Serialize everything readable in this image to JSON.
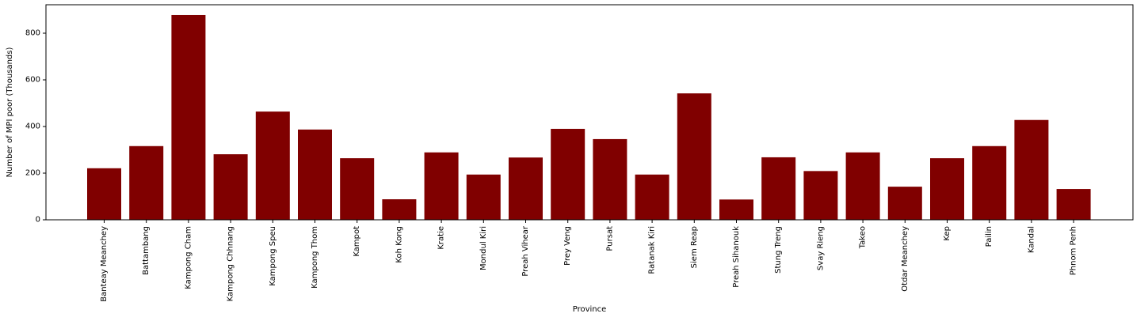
{
  "chart_data": {
    "type": "bar",
    "title": "",
    "xlabel": "Province",
    "ylabel": "Number of MPI poor (Thousands)",
    "categories": [
      "Banteay Meanchey",
      "Battambang",
      "Kampong Cham",
      "Kampong Chhnang",
      "Kampong Speu",
      "Kampong Thom",
      "Kampot",
      "Koh Kong",
      "Kratie",
      "Mondul Kiri",
      "Preah Vihear",
      "Prey Veng",
      "Pursat",
      "Ratanak Kiri",
      "Siem Reap",
      "Preah Sihanouk",
      "Stung Treng",
      "Svay Rieng",
      "Takeo",
      "Otdar Meanchey",
      "Kep",
      "Pailin",
      "Kandal",
      "Phnom Penh"
    ],
    "values": [
      221,
      316,
      878,
      281,
      464,
      387,
      264,
      88,
      289,
      194,
      267,
      390,
      346,
      194,
      542,
      87,
      268,
      209,
      289,
      142,
      264,
      316,
      428,
      132
    ],
    "yticks": [
      0,
      200,
      400,
      600,
      800
    ],
    "ylim": [
      0,
      922
    ],
    "bar_color": "#800000",
    "grid": false,
    "legend": "none"
  }
}
